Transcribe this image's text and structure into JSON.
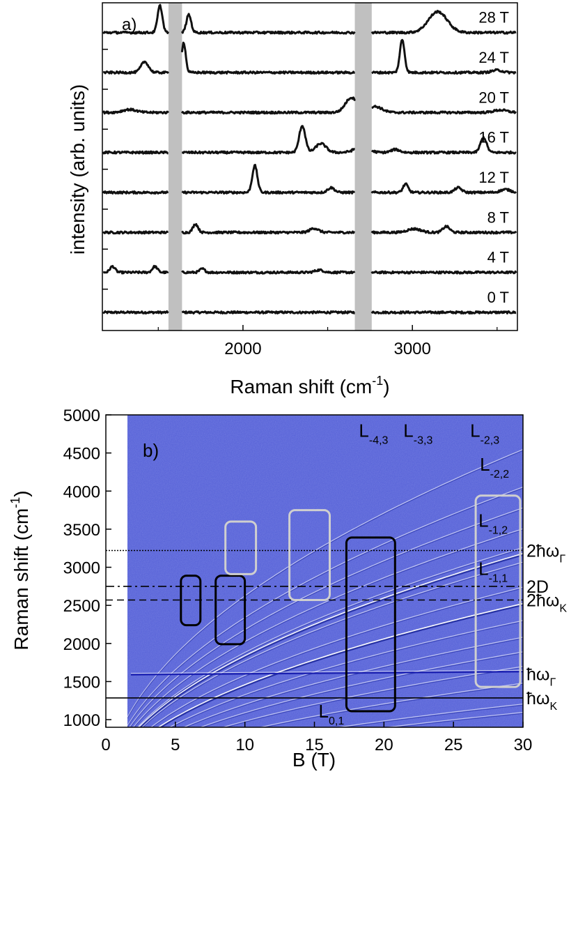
{
  "chart_data": [
    {
      "panel": "a)",
      "type": "line",
      "xlabel": "Raman shift (cm",
      "xlabel_sup": "-1",
      "xlabel_end": ")",
      "ylabel": "intensity (arb. units)",
      "xlim": [
        1170,
        3620
      ],
      "xticks": [
        2000,
        3000
      ],
      "masked_bands": [
        [
          1560,
          1640
        ],
        [
          2660,
          2760
        ]
      ],
      "offset_step": 0.78,
      "series": [
        {
          "name": "0 T",
          "offset": 0,
          "peaks": []
        },
        {
          "name": "4 T",
          "offset": 1,
          "peaks": [
            [
              1230,
              0.1,
              15
            ],
            [
              1480,
              0.1,
              15
            ],
            [
              1760,
              0.06,
              15
            ],
            [
              2450,
              0.04,
              25
            ]
          ]
        },
        {
          "name": "8 T",
          "offset": 2,
          "peaks": [
            [
              1720,
              0.14,
              15
            ],
            [
              2420,
              0.07,
              25
            ],
            [
              3010,
              0.06,
              40
            ],
            [
              3200,
              0.1,
              20
            ]
          ]
        },
        {
          "name": "12 T",
          "offset": 3,
          "peaks": [
            [
              2070,
              0.45,
              15
            ],
            [
              2520,
              0.08,
              20
            ],
            [
              2960,
              0.14,
              15
            ],
            [
              3270,
              0.08,
              20
            ],
            [
              3550,
              0.05,
              30
            ]
          ]
        },
        {
          "name": "16 T",
          "offset": 4,
          "peaks": [
            [
              2350,
              0.45,
              18
            ],
            [
              2460,
              0.15,
              30
            ],
            [
              2700,
              0.1,
              40
            ],
            [
              2900,
              0.05,
              25
            ],
            [
              3420,
              0.25,
              18
            ]
          ]
        },
        {
          "name": "20 T",
          "offset": 5,
          "peaks": [
            [
              1330,
              0.05,
              40
            ],
            [
              2640,
              0.25,
              35
            ],
            [
              2780,
              0.1,
              40
            ],
            [
              3520,
              0.04,
              40
            ]
          ]
        },
        {
          "name": "24 T",
          "offset": 6,
          "peaks": [
            [
              1420,
              0.18,
              22
            ],
            [
              1650,
              0.5,
              12
            ],
            [
              2940,
              0.55,
              14
            ],
            [
              3500,
              0.04,
              30
            ]
          ]
        },
        {
          "name": "28 T",
          "offset": 7,
          "peaks": [
            [
              1510,
              0.45,
              14
            ],
            [
              1680,
              0.3,
              14
            ],
            [
              3150,
              0.35,
              55
            ]
          ]
        }
      ]
    },
    {
      "panel": "b)",
      "type": "heatmap",
      "xlabel": "B (T)",
      "ylabel": "Raman shift (cm",
      "ylabel_sup": "-1",
      "ylabel_end": ")",
      "xlim": [
        0,
        30
      ],
      "ylim": [
        900,
        5000
      ],
      "xticks": [
        0,
        5,
        10,
        15,
        20,
        25,
        30
      ],
      "yticks": [
        1000,
        1500,
        2000,
        2500,
        3000,
        3500,
        4000,
        4500,
        5000
      ],
      "data_start_B": 1.5,
      "fan_lines": [
        {
          "c": 220,
          "main": false
        },
        {
          "c": 270,
          "main": false
        },
        {
          "c": 310,
          "main": false
        },
        {
          "c": 345,
          "main": false
        },
        {
          "c": 380,
          "main": false
        },
        {
          "c": 420,
          "main": false
        },
        {
          "c": 460,
          "main": false
        },
        {
          "c": 500,
          "main": false
        },
        {
          "c": 560,
          "main": false
        },
        {
          "c": 595,
          "main": false
        },
        {
          "c": 640,
          "main": false
        },
        {
          "c": 690,
          "main": false
        },
        {
          "c": 740,
          "main": false
        },
        {
          "c": 830,
          "main": false
        },
        {
          "c": 460,
          "main": true
        },
        {
          "c": 580,
          "main": true
        },
        {
          "c": 200,
          "main": false
        }
      ],
      "g_mode_line": {
        "shift": 1590,
        "B_start": 1.8
      },
      "level_labels": [
        {
          "base": "L",
          "sub": "-4,3",
          "B": 18.2,
          "shift": 4710
        },
        {
          "base": "L",
          "sub": "-3,3",
          "B": 21.4,
          "shift": 4710
        },
        {
          "base": "L",
          "sub": "-2,3",
          "B": 26.2,
          "shift": 4710
        },
        {
          "base": "L",
          "sub": "-2,2",
          "B": 26.9,
          "shift": 4270
        },
        {
          "base": "L",
          "sub": "-1,2",
          "B": 26.8,
          "shift": 3530
        },
        {
          "base": "L",
          "sub": "-1,1",
          "B": 26.8,
          "shift": 2900
        },
        {
          "base": "L",
          "sub": "0,1",
          "B": 15.3,
          "shift": 1030
        }
      ],
      "reference_lines": [
        {
          "label": "2ħω",
          "sub": "Γ",
          "shift": 3220,
          "style": "dotted"
        },
        {
          "label": "2D",
          "sub": "",
          "shift": 2750,
          "style": "dashdot"
        },
        {
          "label": "2ħω",
          "sub": "K",
          "shift": 2570,
          "style": "dashed"
        },
        {
          "label": "ħω",
          "sub": "Γ",
          "shift": 1600,
          "style": "none"
        },
        {
          "label": "ħω",
          "sub": "K",
          "shift": 1285,
          "style": "solid"
        }
      ],
      "boxes": [
        {
          "B": [
            5.4,
            6.8
          ],
          "shift": [
            2240,
            2890
          ],
          "color": "black"
        },
        {
          "B": [
            7.9,
            10.0
          ],
          "shift": [
            1990,
            2890
          ],
          "color": "black"
        },
        {
          "B": [
            8.6,
            10.8
          ],
          "shift": [
            2910,
            3600
          ],
          "color": "light"
        },
        {
          "B": [
            13.2,
            16.1
          ],
          "shift": [
            2570,
            3750
          ],
          "color": "light"
        },
        {
          "B": [
            17.3,
            20.8
          ],
          "shift": [
            1110,
            3390
          ],
          "color": "black"
        },
        {
          "B": [
            26.6,
            29.8
          ],
          "shift": [
            1430,
            3940
          ],
          "color": "light"
        }
      ]
    }
  ]
}
